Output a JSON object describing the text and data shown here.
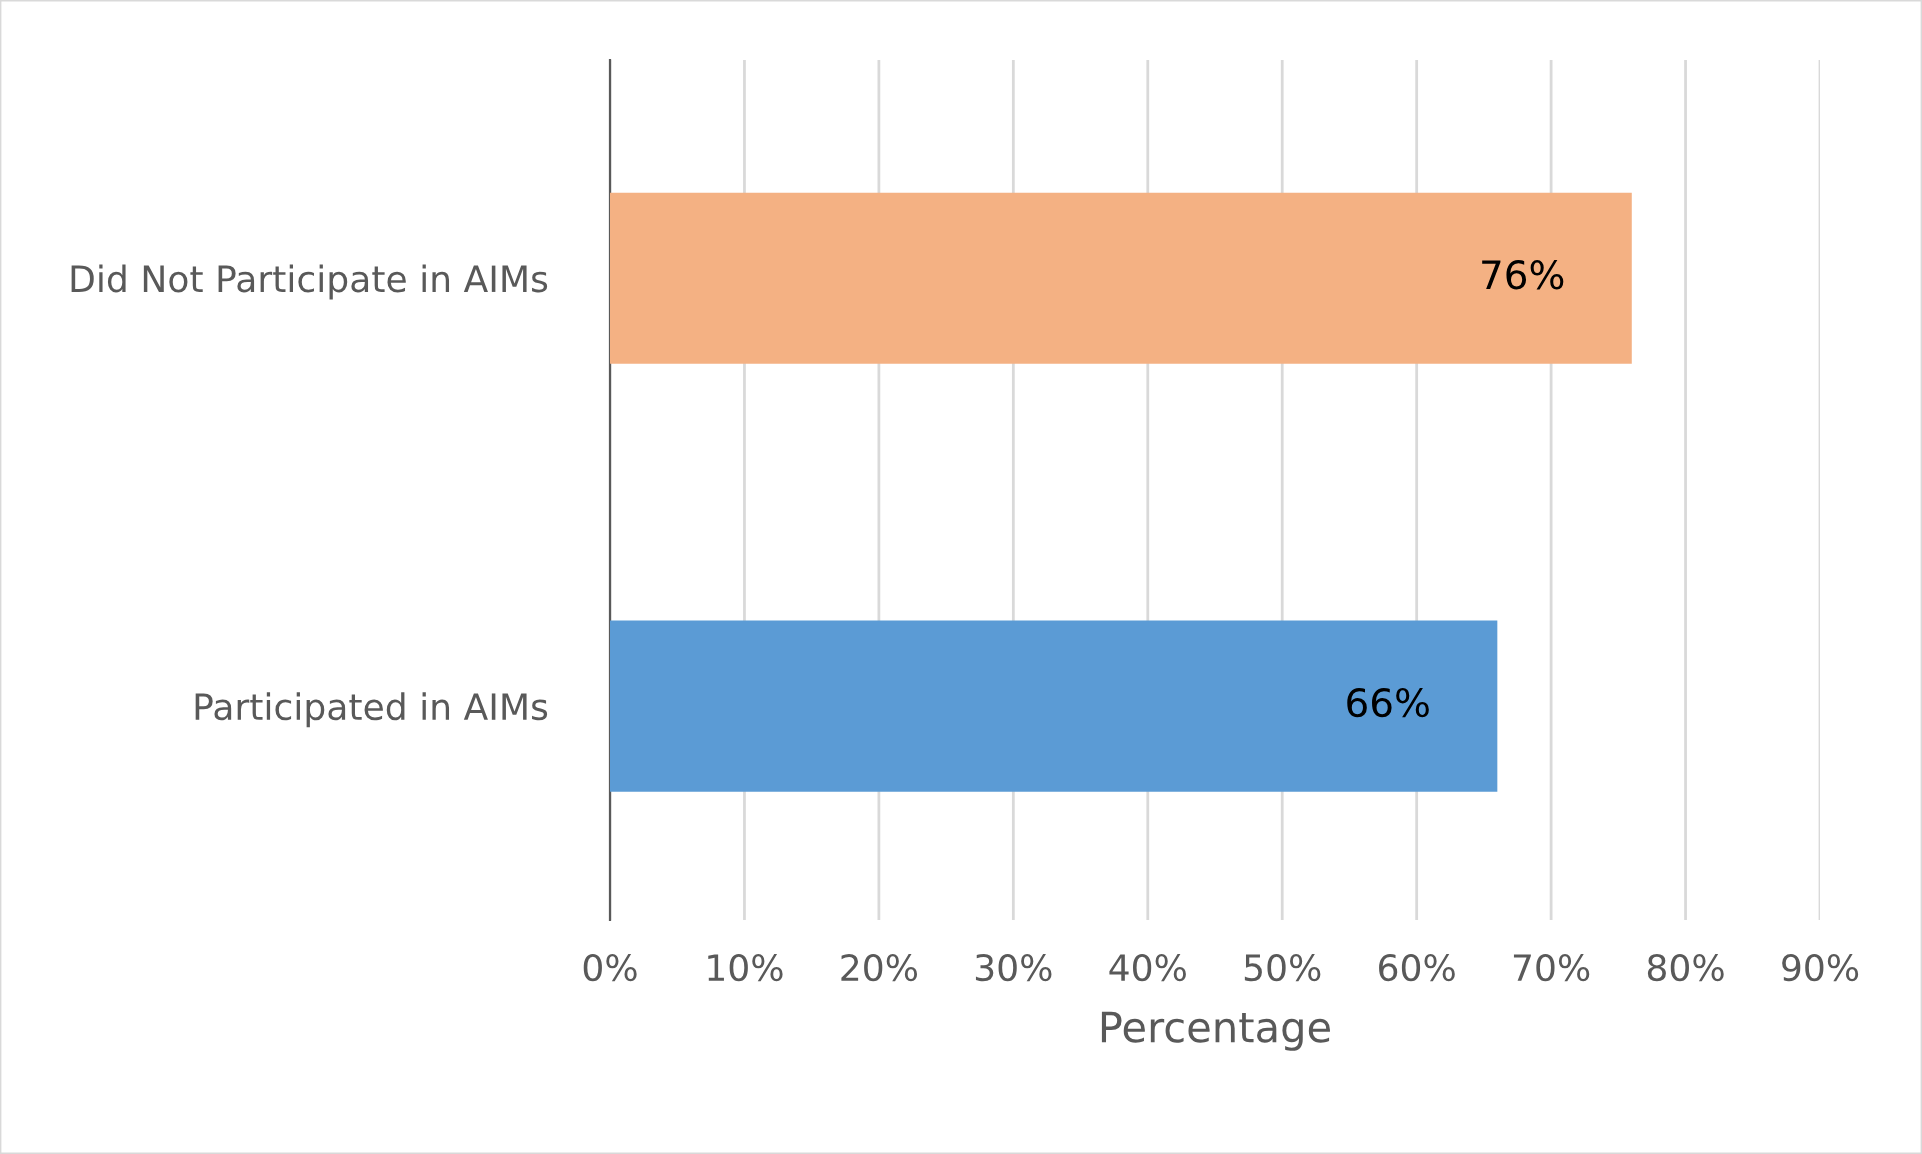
{
  "chart_data": {
    "type": "bar",
    "orientation": "horizontal",
    "categories": [
      "Did Not Participate in AIMs",
      "Participated in AIMs"
    ],
    "values": [
      76,
      66
    ],
    "colors": [
      "#f4b183",
      "#5b9bd5"
    ],
    "value_labels": [
      "76%",
      "66%"
    ],
    "xlabel": "Percentage",
    "xlim": [
      0,
      90
    ],
    "xticks": [
      {
        "value": 0,
        "label": "0%"
      },
      {
        "value": 10,
        "label": "10%"
      },
      {
        "value": 20,
        "label": "20%"
      },
      {
        "value": 30,
        "label": "30%"
      },
      {
        "value": 40,
        "label": "40%"
      },
      {
        "value": 50,
        "label": "50%"
      },
      {
        "value": 60,
        "label": "60%"
      },
      {
        "value": 70,
        "label": "70%"
      },
      {
        "value": 80,
        "label": "80%"
      },
      {
        "value": 90,
        "label": "90%"
      }
    ],
    "grid": "x",
    "legend": false
  }
}
